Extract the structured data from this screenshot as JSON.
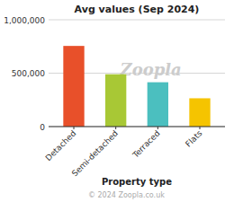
{
  "chart_data": {
    "type": "bar",
    "title": "Avg values (Sep 2024)",
    "categories": [
      "Detached",
      "Semi-detached",
      "Terraced",
      "Flats"
    ],
    "values": [
      755000,
      490000,
      415000,
      265000
    ],
    "colors": [
      "#e8502a",
      "#a8c835",
      "#4bbfbf",
      "#f5c400"
    ],
    "ylim": [
      0,
      1000000
    ],
    "yticks": [
      0,
      {
        "value": 500000,
        "label": "500,000"
      },
      {
        "value": 1000000,
        "label": "1,000,000"
      }
    ],
    "xlabel": "Property type",
    "annotations": [
      "Zoopla",
      "© 2024 Zoopla.co.uk"
    ],
    "grid": true
  }
}
